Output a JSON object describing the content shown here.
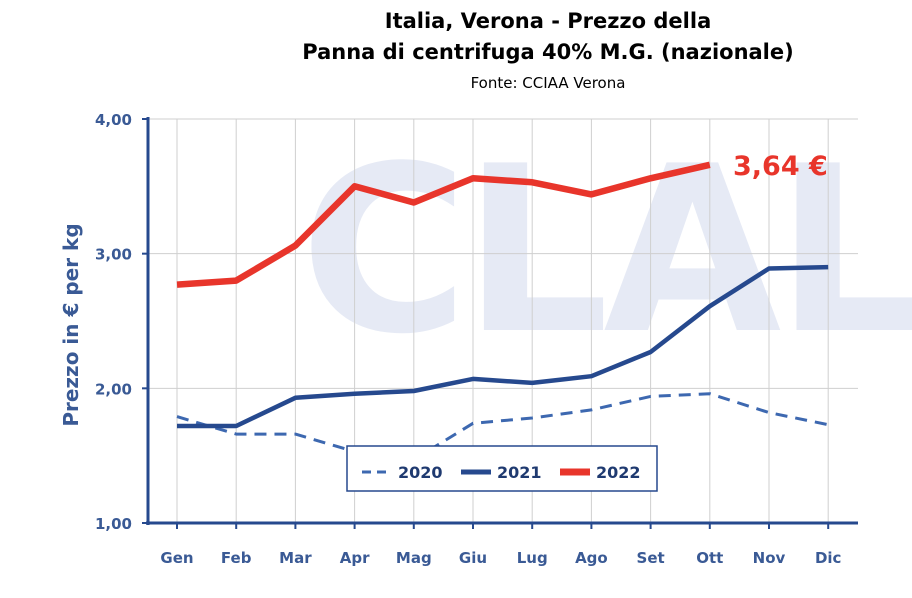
{
  "chart_data": {
    "type": "line",
    "title_lines": [
      "Italia, Verona - Prezzo della",
      "Panna di centrifuga 40% M.G. (nazionale)"
    ],
    "subtitle": "Fonte: CCIAA Verona",
    "ylabel": "Prezzo in € per kg",
    "xlabel": "",
    "watermark": "CLAL",
    "categories": [
      "Gen",
      "Feb",
      "Mar",
      "Apr",
      "Mag",
      "Giu",
      "Lug",
      "Ago",
      "Set",
      "Ott",
      "Nov",
      "Dic"
    ],
    "ylim": [
      1,
      4
    ],
    "yticks": [
      1,
      2,
      3,
      4
    ],
    "ytick_labels": [
      "1,00",
      "2,00",
      "3,00",
      "4,00"
    ],
    "grid": true,
    "legend_position": "bottom-center",
    "series": [
      {
        "name": "2020",
        "color": "#3d68b0",
        "style": "dashed",
        "values": [
          1.79,
          1.66,
          1.66,
          1.53,
          1.47,
          1.74,
          1.78,
          1.84,
          1.94,
          1.96,
          1.82,
          1.73
        ]
      },
      {
        "name": "2021",
        "color": "#26498e",
        "style": "solid",
        "values": [
          1.72,
          1.72,
          1.93,
          1.96,
          1.98,
          2.07,
          2.04,
          2.09,
          2.27,
          2.61,
          2.89,
          2.9
        ]
      },
      {
        "name": "2022",
        "color": "#e8352b",
        "style": "solid",
        "values": [
          2.77,
          2.8,
          3.06,
          3.5,
          3.38,
          3.56,
          3.53,
          3.44,
          3.56,
          3.66,
          null,
          null
        ]
      }
    ],
    "annotation": {
      "text": "3,64 €",
      "color": "#e8352b"
    }
  }
}
